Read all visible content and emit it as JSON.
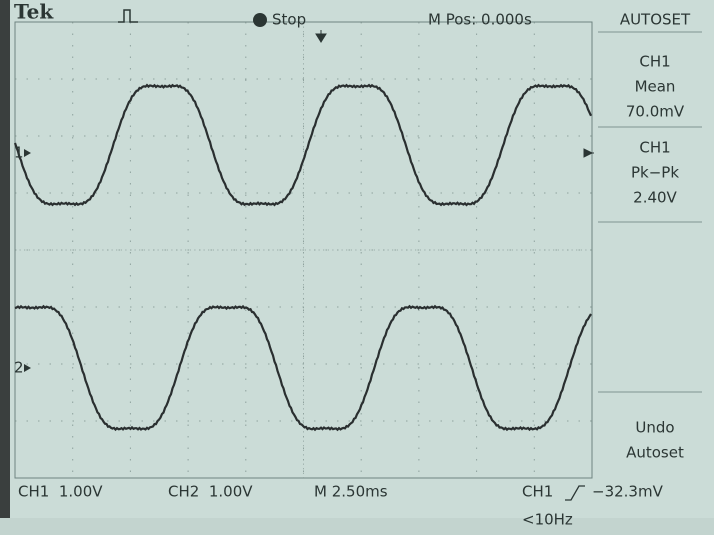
{
  "header": {
    "brand": "Tek",
    "trigger_state": "Stop",
    "position": "M Pos: 0.000s"
  },
  "menu": {
    "title": "AUTOSET",
    "items": [
      {
        "lines": [
          "CH1",
          "Mean",
          "70.0mV"
        ]
      },
      {
        "lines": [
          "CH1",
          "Pk−Pk",
          "2.40V"
        ]
      },
      {
        "lines": [
          "Undo",
          "Autoset"
        ]
      }
    ]
  },
  "markers": [
    "1",
    "2"
  ],
  "footer": {
    "ch1_scale": "CH1  1.00V",
    "ch2_scale": "CH2  1.00V",
    "timebase": "M 2.50ms",
    "trigger_source": "CH1",
    "trigger_level": "−32.3mV",
    "frequency": "<10Hz"
  }
}
